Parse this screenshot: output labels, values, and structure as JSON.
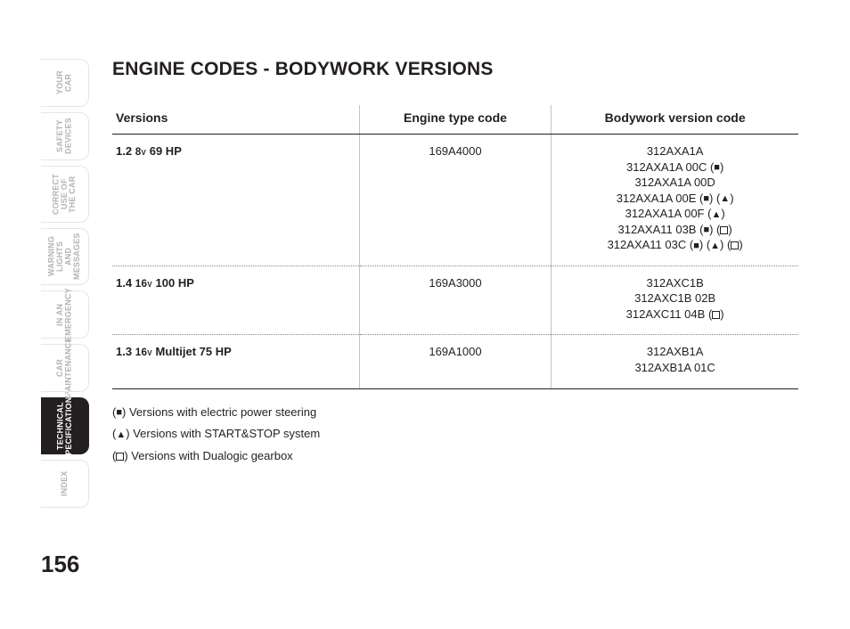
{
  "page_number": "156",
  "section_title": "ENGINE CODES - BODYWORK VERSIONS",
  "side_tabs": [
    {
      "label": "YOUR CAR",
      "active": false
    },
    {
      "label": "SAFETY DEVICES",
      "active": false
    },
    {
      "label": "CORRECT USE OF THE CAR",
      "active": false
    },
    {
      "label": "WARNING LIGHTS AND MESSAGES",
      "active": false
    },
    {
      "label": "IN AN EMERGENCY",
      "active": false
    },
    {
      "label": "CAR MAINTENANCE",
      "active": false
    },
    {
      "label": "TECHNICAL SPECIFICATIONS",
      "active": true
    },
    {
      "label": "INDEX",
      "active": false
    }
  ],
  "table": {
    "headers": {
      "versions": "Versions",
      "engine": "Engine type code",
      "body": "Bodywork version code"
    },
    "rows": [
      {
        "version_main": "1.2",
        "version_sc": "8v",
        "version_tail": " 69 HP",
        "engine": "169A4000",
        "body_codes": [
          {
            "text": "312AXA1A",
            "glyphs": []
          },
          {
            "text": "312AXA1A 00C",
            "glyphs": [
              "square-filled"
            ]
          },
          {
            "text": "312AXA1A 00D",
            "glyphs": []
          },
          {
            "text": "312AXA1A 00E",
            "glyphs": [
              "square-filled",
              "triangle-filled"
            ]
          },
          {
            "text": "312AXA1A 00F",
            "glyphs": [
              "triangle-filled"
            ]
          },
          {
            "text": "312AXA11 03B",
            "glyphs": [
              "square-filled",
              "square-outline"
            ]
          },
          {
            "text": "312AXA11 03C",
            "glyphs": [
              "square-filled",
              "triangle-filled",
              "square-outline"
            ]
          }
        ]
      },
      {
        "version_main": "1.4",
        "version_sc": "16v",
        "version_tail": " 100 HP",
        "engine": "169A3000",
        "body_codes": [
          {
            "text": "312AXC1B",
            "glyphs": []
          },
          {
            "text": "312AXC1B 02B",
            "glyphs": []
          },
          {
            "text": "312AXC11 04B",
            "glyphs": [
              "square-outline"
            ]
          }
        ]
      },
      {
        "version_main": "1.3",
        "version_sc": "16v",
        "version_tail": " Multijet 75 HP",
        "engine": "169A1000",
        "body_codes": [
          {
            "text": "312AXB1A",
            "glyphs": []
          },
          {
            "text": "312AXB1A 01C",
            "glyphs": []
          }
        ]
      }
    ]
  },
  "footnotes": [
    {
      "glyph": "square-filled",
      "text": "Versions with electric power steering"
    },
    {
      "glyph": "triangle-filled",
      "text": "Versions with START&STOP system"
    },
    {
      "glyph": "square-outline",
      "text": "Versions with Dualogic gearbox"
    }
  ],
  "colors": {
    "text": "#231f20",
    "muted_tab": "#b4b3b2",
    "tab_border": "#e6e5e4",
    "rule_gray": "#c5c3c1",
    "active_tab_bg": "#231f20",
    "active_tab_fg": "#ffffff"
  }
}
